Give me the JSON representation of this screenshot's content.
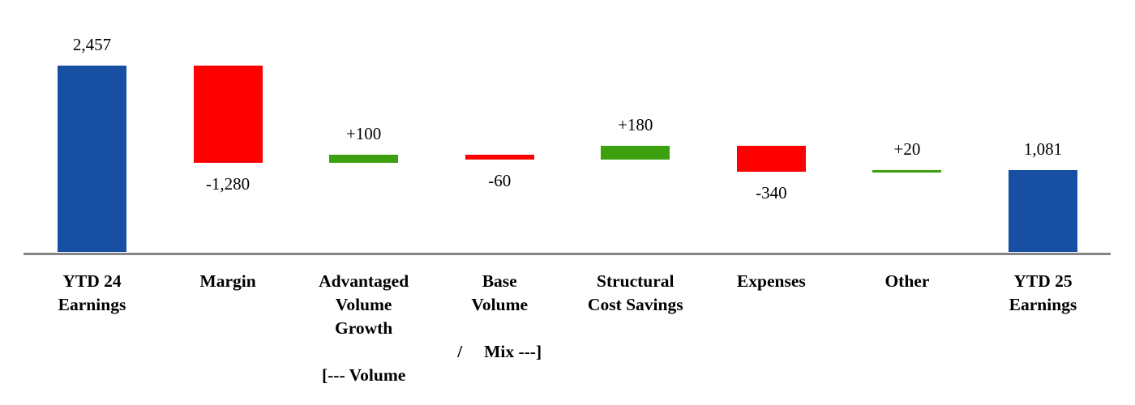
{
  "chart_data": {
    "type": "bar",
    "subtype": "waterfall",
    "title": "",
    "xlabel": "",
    "ylabel": "",
    "legend": false,
    "gridlines": false,
    "y_axis_visible": false,
    "categories": [
      "YTD 24 Earnings",
      "Margin",
      "Advantaged Volume Growth",
      "Base Volume",
      "Structural Cost Savings",
      "Expenses",
      "Other",
      "YTD 25 Earnings"
    ],
    "volume_mix_annotation": "[--- Volume  /  Mix ---]",
    "bars": [
      {
        "key": "ytd-24-earnings",
        "category_lines": [
          "YTD 24",
          "Earnings"
        ],
        "value": 2457,
        "label": "2,457",
        "role": "total",
        "label_position": "above"
      },
      {
        "key": "margin",
        "category_lines": [
          "Margin"
        ],
        "value": -1280,
        "label": "-1,280",
        "role": "decrease",
        "label_position": "below"
      },
      {
        "key": "advantaged-volume-growth",
        "category_lines": [
          "Advantaged",
          "Volume",
          "Growth",
          "",
          "[--- Volume"
        ],
        "value": 100,
        "label": "+100",
        "role": "increase",
        "label_position": "above"
      },
      {
        "key": "base-volume",
        "category_lines": [
          "Base",
          "Volume",
          "",
          "/     Mix ---]"
        ],
        "value": -60,
        "label": "-60",
        "role": "decrease",
        "label_position": "below"
      },
      {
        "key": "structural-cost-savings",
        "category_lines": [
          "Structural",
          "Cost Savings"
        ],
        "value": 180,
        "label": "+180",
        "role": "increase",
        "label_position": "above"
      },
      {
        "key": "expenses",
        "category_lines": [
          "Expenses"
        ],
        "value": -340,
        "label": "-340",
        "role": "decrease",
        "label_position": "below"
      },
      {
        "key": "other",
        "category_lines": [
          "Other"
        ],
        "value": 20,
        "label": "+20",
        "role": "increase",
        "label_position": "above"
      },
      {
        "key": "ytd-25-earnings",
        "category_lines": [
          "YTD 25",
          "Earnings"
        ],
        "value": 1081,
        "label": "1,081",
        "role": "total",
        "label_position": "above"
      }
    ],
    "colors": {
      "total_bar": "#1750A2",
      "increase_bar": "#3DA00F",
      "decrease_bar": "#FE0000",
      "axis_line": "#848484",
      "label_text": "#000000"
    }
  }
}
